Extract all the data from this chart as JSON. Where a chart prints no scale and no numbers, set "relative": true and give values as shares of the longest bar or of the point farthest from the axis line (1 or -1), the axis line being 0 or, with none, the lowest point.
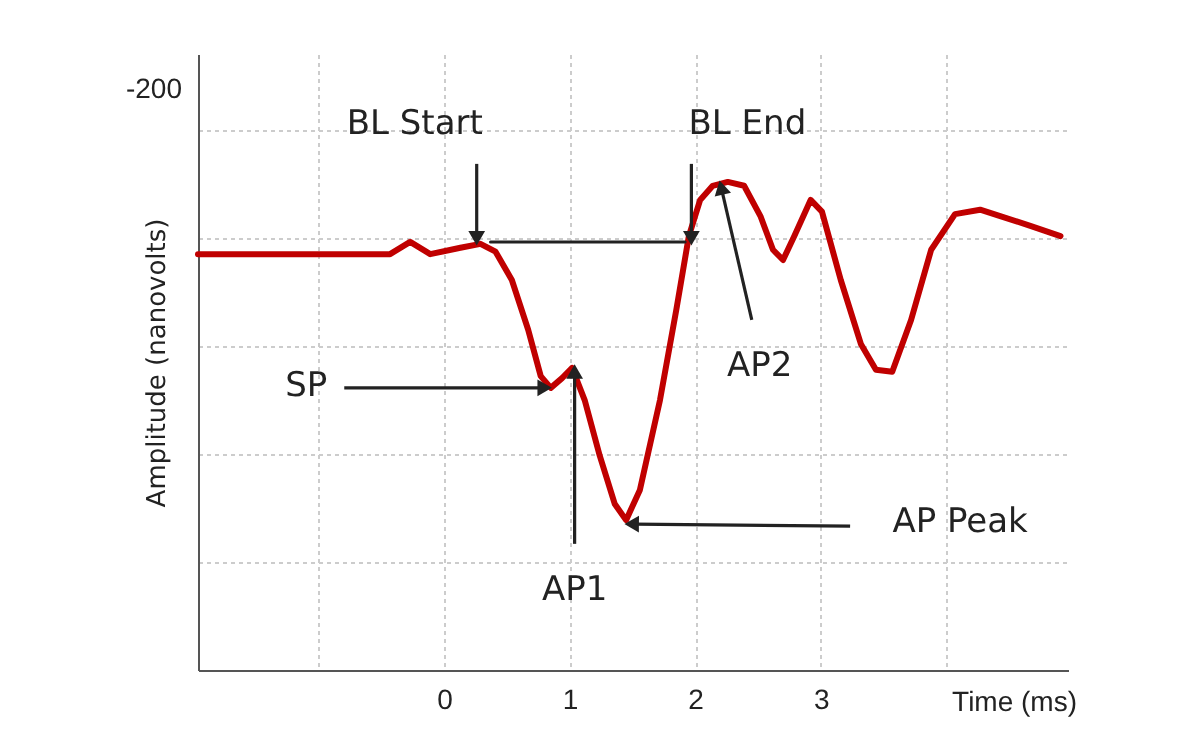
{
  "chart_data": {
    "type": "line",
    "relative": true,
    "xlabel": "Time (ms)",
    "ylabel": "Amplitude (nanovolts)",
    "xlim": [
      -1.96,
      4.97
    ],
    "xticks": [
      {
        "value": -1,
        "label": null
      },
      0,
      1,
      2,
      3,
      {
        "value": 4,
        "label": null
      }
    ],
    "grid": true,
    "legend": false,
    "marker": "none",
    "line_style": "solid",
    "series": [
      {
        "color": "#c00000",
        "x": [
          -1.96,
          -0.43,
          -0.27,
          -0.11,
          0.13,
          0.29,
          0.41,
          0.54,
          0.67,
          0.77,
          0.85,
          0.94,
          1.02,
          1.12,
          1.24,
          1.36,
          1.45,
          1.56,
          1.72,
          1.85,
          1.95,
          2.04,
          2.14,
          2.26,
          2.39,
          2.52,
          2.62,
          2.7,
          2.79,
          2.92,
          3.01,
          3.16,
          3.32,
          3.44,
          3.57,
          3.72,
          3.88,
          4.07,
          4.27,
          4.43,
          4.67,
          4.91
        ],
        "values": [
          0.852,
          0.852,
          0.877,
          0.852,
          0.865,
          0.873,
          0.857,
          0.799,
          0.697,
          0.602,
          0.578,
          0.598,
          0.619,
          0.553,
          0.439,
          0.34,
          0.307,
          0.369,
          0.553,
          0.738,
          0.889,
          0.963,
          0.992,
          1.0,
          0.992,
          0.93,
          0.861,
          0.84,
          0.889,
          0.963,
          0.939,
          0.799,
          0.668,
          0.615,
          0.611,
          0.717,
          0.861,
          0.934,
          0.943,
          0.93,
          0.91,
          0.889
        ]
      },
      {
        "type": "line",
        "color": "#222222",
        "x": [
          0.37,
          1.92
        ],
        "values": [
          0.877,
          0.877
        ]
      }
    ],
    "annotations": [
      "-200",
      {
        "text": "BL Start",
        "x": 0.26,
        "y": 0.873
      },
      {
        "text": "BL End",
        "x": 1.97,
        "y": 0.873
      },
      {
        "text": "SP",
        "x": 0.83,
        "y": 0.578
      },
      {
        "text": "AP1",
        "x": 1.04,
        "y": 0.619
      },
      {
        "text": "AP Peak",
        "x": 1.45,
        "y": 0.307
      },
      {
        "text": "AP2",
        "x": 2.26,
        "y": 1.0
      }
    ]
  }
}
